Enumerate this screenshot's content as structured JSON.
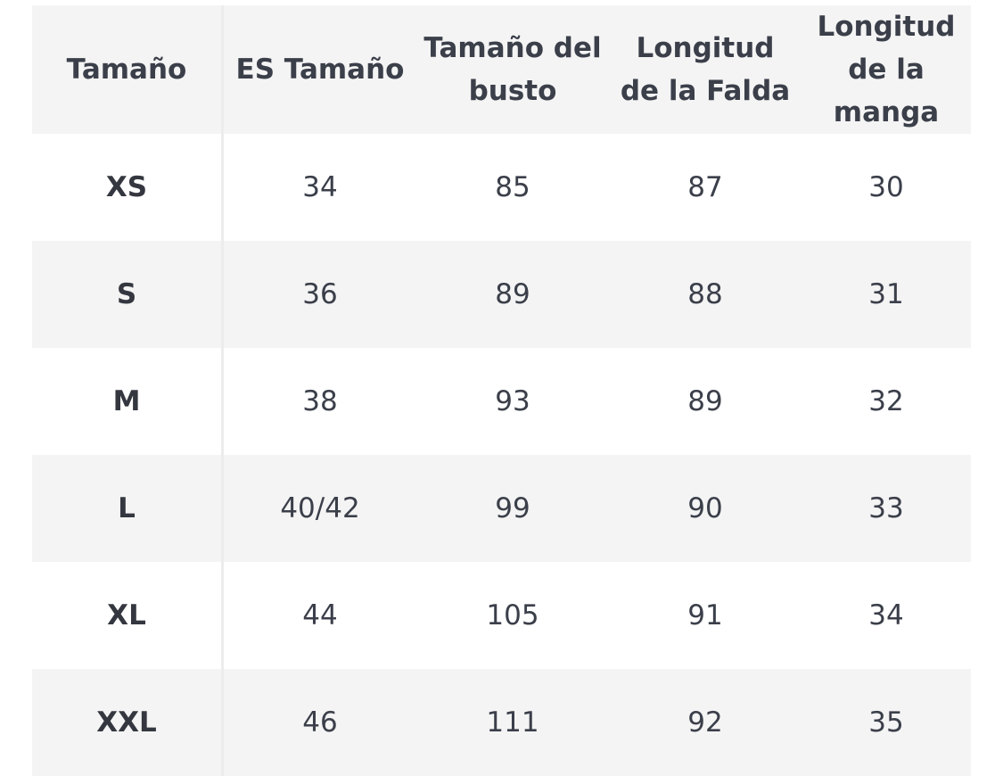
{
  "headers": [
    "Tamaño",
    "ES Tamaño",
    "Tamaño del busto",
    "Longitud de la Falda",
    "Longitud de la manga"
  ],
  "rows": [
    [
      "XS",
      "34",
      "85",
      "87",
      "30"
    ],
    [
      "S",
      "36",
      "89",
      "88",
      "31"
    ],
    [
      "M",
      "38",
      "93",
      "89",
      "32"
    ],
    [
      "L",
      "40/42",
      "99",
      "90",
      "33"
    ],
    [
      "XL",
      "44",
      "105",
      "91",
      "34"
    ],
    [
      "XXL",
      "46",
      "111",
      "92",
      "35"
    ]
  ],
  "colors": {
    "header_bg": "#f4f4f4",
    "stripe_bg": "#f4f4f4",
    "text": "#3b3f4a"
  }
}
